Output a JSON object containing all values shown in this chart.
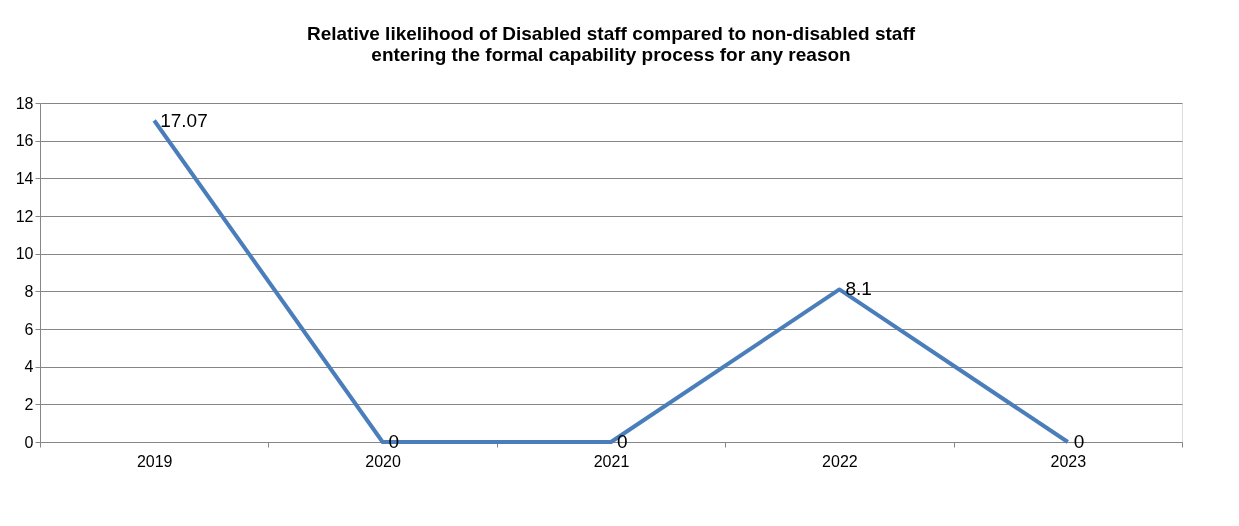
{
  "chart_data": {
    "type": "line",
    "title": "Relative likelihood of Disabled staff compared to non-disabled staff entering the formal capability process for any reason",
    "categories": [
      "2019",
      "2020",
      "2021",
      "2022",
      "2023"
    ],
    "series": [
      {
        "color": "#4a7ebb",
        "values": [
          17.07,
          0,
          0,
          8.1,
          0
        ]
      }
    ],
    "ylim": [
      0,
      18
    ],
    "yticks": [
      0,
      2,
      4,
      6,
      8,
      10,
      12,
      14,
      16,
      18
    ],
    "grid": "y",
    "marker": "none",
    "line_style": "solid",
    "data_labels": true
  }
}
